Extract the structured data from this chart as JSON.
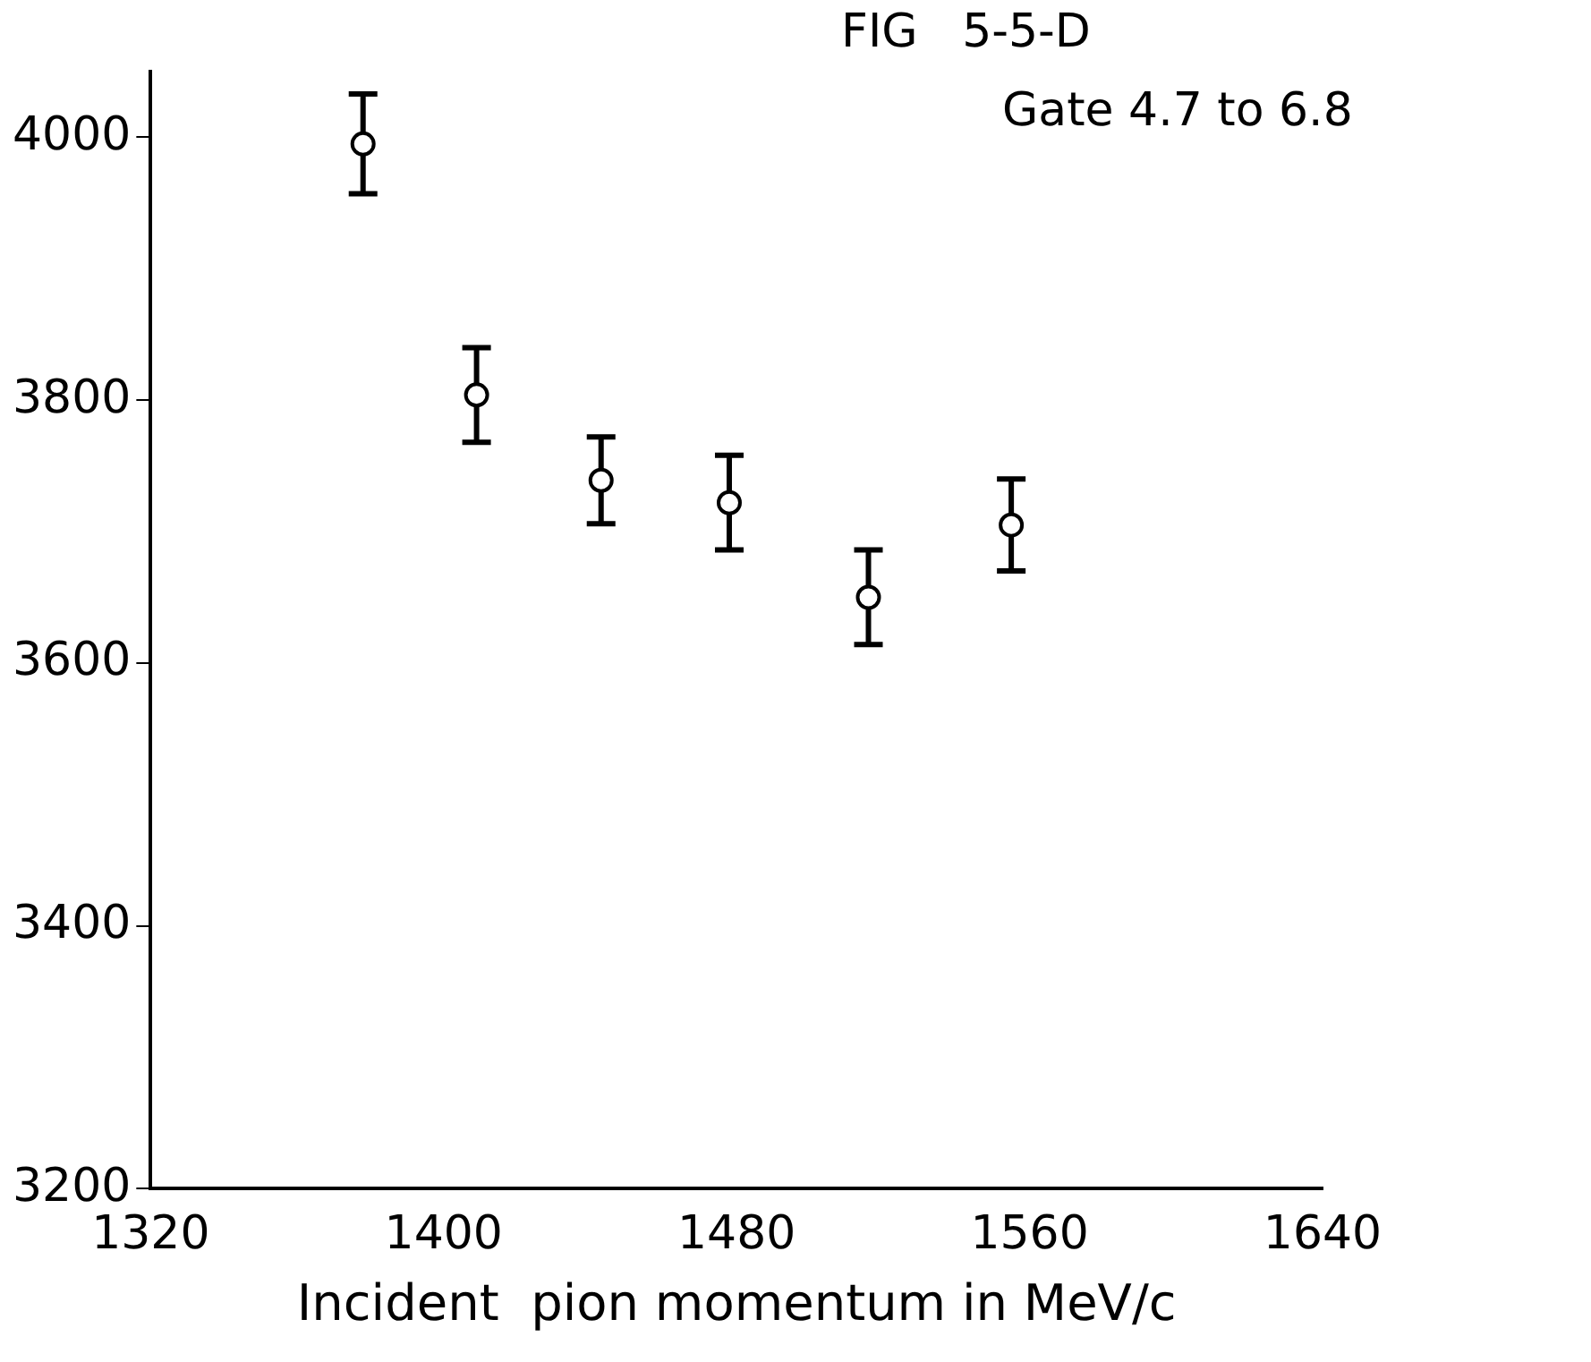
{
  "chart_data": {
    "type": "scatter",
    "title": "FIG   5-5-D",
    "annotations": [
      "Gate 4.7 to 6.8"
    ],
    "xlabel": "Incident  pion momentum in MeV/c",
    "x": [
      1378,
      1409,
      1443,
      1478,
      1516,
      1555
    ],
    "series": [
      {
        "color": "#000000",
        "values": [
          3995,
          3804,
          3739,
          3722,
          3650,
          3705
        ],
        "errors": [
          38,
          36,
          33,
          36,
          36,
          35
        ]
      }
    ],
    "xlim": [
      1320,
      1640
    ],
    "xticks": [
      1320,
      1400,
      1480,
      1560,
      1640
    ],
    "ylim": [
      3200,
      4050
    ],
    "yticks": [
      3200,
      3400,
      3600,
      3800,
      4000
    ],
    "grid": false,
    "legend": false,
    "marker": "circle"
  }
}
